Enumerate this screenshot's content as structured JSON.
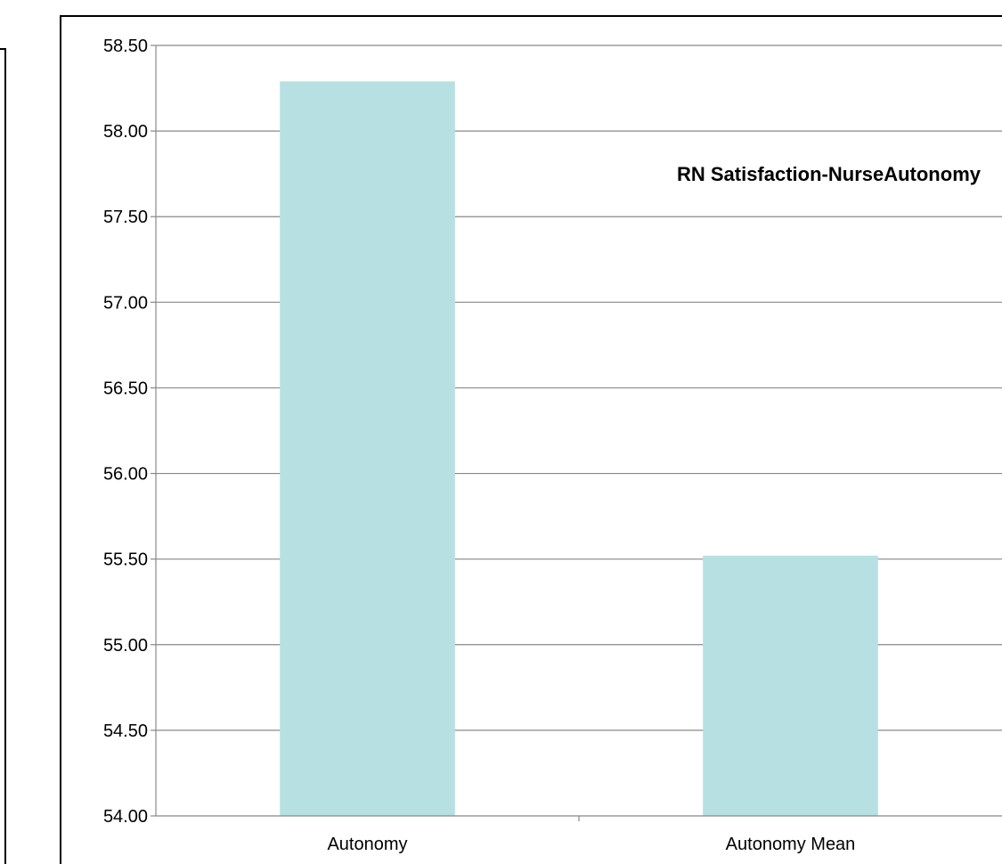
{
  "chart_data": {
    "type": "bar",
    "title": "RN Satisfaction-NurseAutonomy",
    "categories": [
      "Autonomy",
      "Autonomy Mean"
    ],
    "values": [
      58.29,
      55.52
    ],
    "ylim": [
      54.0,
      58.5
    ],
    "yticks": [
      "58.50",
      "58.00",
      "57.50",
      "57.00",
      "56.50",
      "56.00",
      "55.50",
      "55.00",
      "54.50",
      "54.00"
    ],
    "grid": true,
    "bar_color": "#B7E0E3",
    "gridline_color": "#888888"
  }
}
